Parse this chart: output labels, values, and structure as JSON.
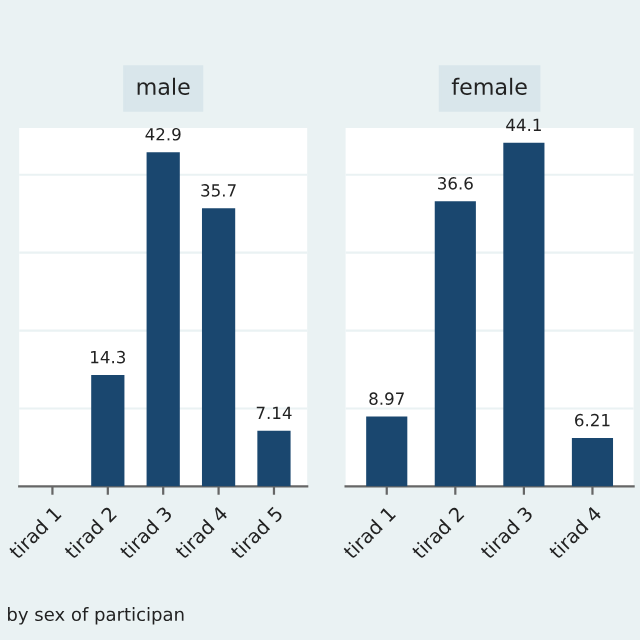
{
  "chart_data": [
    {
      "type": "bar",
      "title": "male",
      "categories": [
        "tirad 1",
        "tirad 2",
        "tirad 3",
        "tirad 4",
        "tirad 5"
      ],
      "values": [
        0,
        14.3,
        42.9,
        35.7,
        7.14
      ],
      "value_labels": [
        null,
        "14.3",
        "42.9",
        "35.7",
        "7.14"
      ],
      "color": "#1a476f",
      "ylim": [
        0,
        46
      ],
      "yticks": [
        {
          "value": 10,
          "label": null
        },
        {
          "value": 20,
          "label": null
        },
        {
          "value": 30,
          "label": null
        },
        {
          "value": 40,
          "label": null
        }
      ],
      "grid": "y",
      "tick_labels": "x",
      "annotations": [
        "by sex of participan"
      ]
    },
    {
      "type": "bar",
      "title": "female",
      "categories": [
        "tirad 1",
        "tirad 2",
        "tirad 3",
        "tirad 4"
      ],
      "values": [
        8.97,
        36.6,
        44.1,
        6.21
      ],
      "data_labels": true,
      "color": "#1a476f",
      "ylim": [
        0,
        46
      ],
      "yticks": [
        {
          "value": 10,
          "label": null
        },
        {
          "value": 20,
          "label": null
        },
        {
          "value": 30,
          "label": null
        },
        {
          "value": 40,
          "label": null
        }
      ],
      "grid": "y",
      "tick_labels": "x"
    }
  ]
}
